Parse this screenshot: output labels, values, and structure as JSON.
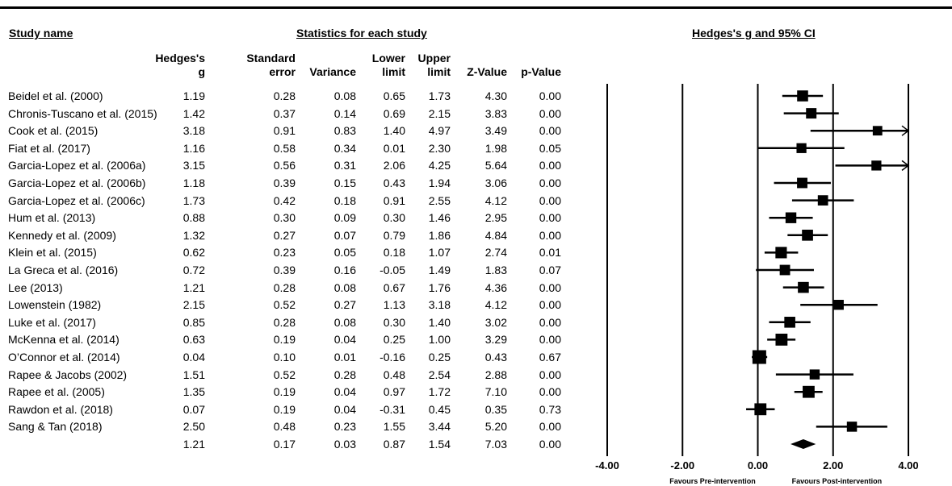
{
  "headers": {
    "study": "Study name",
    "stats": "Statistics for each study",
    "plot": "Hedges's g and 95% CI"
  },
  "columns": [
    {
      "key": "g",
      "l1": "Hedges's",
      "l2": "g"
    },
    {
      "key": "se",
      "l1": "Standard",
      "l2": "error"
    },
    {
      "key": "var",
      "l1": "",
      "l2": "Variance"
    },
    {
      "key": "lo",
      "l1": "Lower",
      "l2": "limit"
    },
    {
      "key": "hi",
      "l1": "Upper",
      "l2": "limit"
    },
    {
      "key": "z",
      "l1": "",
      "l2": "Z-Value"
    },
    {
      "key": "p",
      "l1": "",
      "l2": "p-Value"
    }
  ],
  "rows": [
    {
      "study": "Beidel et al. (2000)",
      "g": "1.19",
      "se": "0.28",
      "var": "0.08",
      "lo": "0.65",
      "hi": "1.73",
      "z": "4.30",
      "p": "0.00"
    },
    {
      "study": "Chronis-Tuscano et al. (2015)",
      "g": "1.42",
      "se": "0.37",
      "var": "0.14",
      "lo": "0.69",
      "hi": "2.15",
      "z": "3.83",
      "p": "0.00"
    },
    {
      "study": "Cook et al. (2015)",
      "g": "3.18",
      "se": "0.91",
      "var": "0.83",
      "lo": "1.40",
      "hi": "4.97",
      "z": "3.49",
      "p": "0.00"
    },
    {
      "study": "Fiat et al. (2017)",
      "g": "1.16",
      "se": "0.58",
      "var": "0.34",
      "lo": "0.01",
      "hi": "2.30",
      "z": "1.98",
      "p": "0.05"
    },
    {
      "study": "Garcia-Lopez et al. (2006a)",
      "g": "3.15",
      "se": "0.56",
      "var": "0.31",
      "lo": "2.06",
      "hi": "4.25",
      "z": "5.64",
      "p": "0.00"
    },
    {
      "study": "Garcia-Lopez et al. (2006b)",
      "g": "1.18",
      "se": "0.39",
      "var": "0.15",
      "lo": "0.43",
      "hi": "1.94",
      "z": "3.06",
      "p": "0.00"
    },
    {
      "study": "Garcia-Lopez et al. (2006c)",
      "g": "1.73",
      "se": "0.42",
      "var": "0.18",
      "lo": "0.91",
      "hi": "2.55",
      "z": "4.12",
      "p": "0.00"
    },
    {
      "study": "Hum et al. (2013)",
      "g": "0.88",
      "se": "0.30",
      "var": "0.09",
      "lo": "0.30",
      "hi": "1.46",
      "z": "2.95",
      "p": "0.00"
    },
    {
      "study": "Kennedy et al. (2009)",
      "g": "1.32",
      "se": "0.27",
      "var": "0.07",
      "lo": "0.79",
      "hi": "1.86",
      "z": "4.84",
      "p": "0.00"
    },
    {
      "study": "Klein et al. (2015)",
      "g": "0.62",
      "se": "0.23",
      "var": "0.05",
      "lo": "0.18",
      "hi": "1.07",
      "z": "2.74",
      "p": "0.01"
    },
    {
      "study": "La Greca et al. (2016)",
      "g": "0.72",
      "se": "0.39",
      "var": "0.16",
      "lo": "-0.05",
      "hi": "1.49",
      "z": "1.83",
      "p": "0.07"
    },
    {
      "study": "Lee (2013)",
      "g": "1.21",
      "se": "0.28",
      "var": "0.08",
      "lo": "0.67",
      "hi": "1.76",
      "z": "4.36",
      "p": "0.00"
    },
    {
      "study": "Lowenstein (1982)",
      "g": "2.15",
      "se": "0.52",
      "var": "0.27",
      "lo": "1.13",
      "hi": "3.18",
      "z": "4.12",
      "p": "0.00"
    },
    {
      "study": "Luke et al. (2017)",
      "g": "0.85",
      "se": "0.28",
      "var": "0.08",
      "lo": "0.30",
      "hi": "1.40",
      "z": "3.02",
      "p": "0.00"
    },
    {
      "study": "McKenna et al. (2014)",
      "g": "0.63",
      "se": "0.19",
      "var": "0.04",
      "lo": "0.25",
      "hi": "1.00",
      "z": "3.29",
      "p": "0.00"
    },
    {
      "study": "O’Connor et al. (2014)",
      "g": "0.04",
      "se": "0.10",
      "var": "0.01",
      "lo": "-0.16",
      "hi": "0.25",
      "z": "0.43",
      "p": "0.67"
    },
    {
      "study": "Rapee & Jacobs (2002)",
      "g": "1.51",
      "se": "0.52",
      "var": "0.28",
      "lo": "0.48",
      "hi": "2.54",
      "z": "2.88",
      "p": "0.00"
    },
    {
      "study": "Rapee et al. (2005)",
      "g": "1.35",
      "se": "0.19",
      "var": "0.04",
      "lo": "0.97",
      "hi": "1.72",
      "z": "7.10",
      "p": "0.00"
    },
    {
      "study": "Rawdon et al. (2018)",
      "g": "0.07",
      "se": "0.19",
      "var": "0.04",
      "lo": "-0.31",
      "hi": "0.45",
      "z": "0.35",
      "p": "0.73"
    },
    {
      "study": "Sang & Tan (2018)",
      "g": "2.50",
      "se": "0.48",
      "var": "0.23",
      "lo": "1.55",
      "hi": "3.44",
      "z": "5.20",
      "p": "0.00"
    }
  ],
  "summary": {
    "study": "",
    "g": "1.21",
    "se": "0.17",
    "var": "0.03",
    "lo": "0.87",
    "hi": "1.54",
    "z": "7.03",
    "p": "0.00"
  },
  "chart_data": {
    "type": "forest",
    "title": "Hedges's g and 95% CI",
    "xlim": [
      -4,
      4
    ],
    "ticks": [
      -4,
      -2,
      0,
      2,
      4
    ],
    "tick_labels": [
      "-4.00",
      "-2.00",
      "0.00",
      "2.00",
      "4.00"
    ],
    "xlabel_left": "Favours Pre-intervention",
    "xlabel_right": "Favours Post-intervention",
    "studies": [
      {
        "name": "Beidel et al. (2000)",
        "g": 1.19,
        "lo": 0.65,
        "hi": 1.73,
        "se": 0.28
      },
      {
        "name": "Chronis-Tuscano et al. (2015)",
        "g": 1.42,
        "lo": 0.69,
        "hi": 2.15,
        "se": 0.37
      },
      {
        "name": "Cook et al. (2015)",
        "g": 3.18,
        "lo": 1.4,
        "hi": 4.97,
        "se": 0.91
      },
      {
        "name": "Fiat et al. (2017)",
        "g": 1.16,
        "lo": 0.01,
        "hi": 2.3,
        "se": 0.58
      },
      {
        "name": "Garcia-Lopez et al. (2006a)",
        "g": 3.15,
        "lo": 2.06,
        "hi": 4.25,
        "se": 0.56
      },
      {
        "name": "Garcia-Lopez et al. (2006b)",
        "g": 1.18,
        "lo": 0.43,
        "hi": 1.94,
        "se": 0.39
      },
      {
        "name": "Garcia-Lopez et al. (2006c)",
        "g": 1.73,
        "lo": 0.91,
        "hi": 2.55,
        "se": 0.42
      },
      {
        "name": "Hum et al. (2013)",
        "g": 0.88,
        "lo": 0.3,
        "hi": 1.46,
        "se": 0.3
      },
      {
        "name": "Kennedy et al. (2009)",
        "g": 1.32,
        "lo": 0.79,
        "hi": 1.86,
        "se": 0.27
      },
      {
        "name": "Klein et al. (2015)",
        "g": 0.62,
        "lo": 0.18,
        "hi": 1.07,
        "se": 0.23
      },
      {
        "name": "La Greca et al. (2016)",
        "g": 0.72,
        "lo": -0.05,
        "hi": 1.49,
        "se": 0.39
      },
      {
        "name": "Lee (2013)",
        "g": 1.21,
        "lo": 0.67,
        "hi": 1.76,
        "se": 0.28
      },
      {
        "name": "Lowenstein (1982)",
        "g": 2.15,
        "lo": 1.13,
        "hi": 3.18,
        "se": 0.52
      },
      {
        "name": "Luke et al. (2017)",
        "g": 0.85,
        "lo": 0.3,
        "hi": 1.4,
        "se": 0.28
      },
      {
        "name": "McKenna et al. (2014)",
        "g": 0.63,
        "lo": 0.25,
        "hi": 1.0,
        "se": 0.19
      },
      {
        "name": "O’Connor et al. (2014)",
        "g": 0.04,
        "lo": -0.16,
        "hi": 0.25,
        "se": 0.1
      },
      {
        "name": "Rapee & Jacobs (2002)",
        "g": 1.51,
        "lo": 0.48,
        "hi": 2.54,
        "se": 0.52
      },
      {
        "name": "Rapee et al. (2005)",
        "g": 1.35,
        "lo": 0.97,
        "hi": 1.72,
        "se": 0.19
      },
      {
        "name": "Rawdon et al. (2018)",
        "g": 0.07,
        "lo": -0.31,
        "hi": 0.45,
        "se": 0.19
      },
      {
        "name": "Sang & Tan (2018)",
        "g": 2.5,
        "lo": 1.55,
        "hi": 3.44,
        "se": 0.48
      }
    ],
    "summary": {
      "g": 1.21,
      "lo": 0.87,
      "hi": 1.54
    }
  }
}
